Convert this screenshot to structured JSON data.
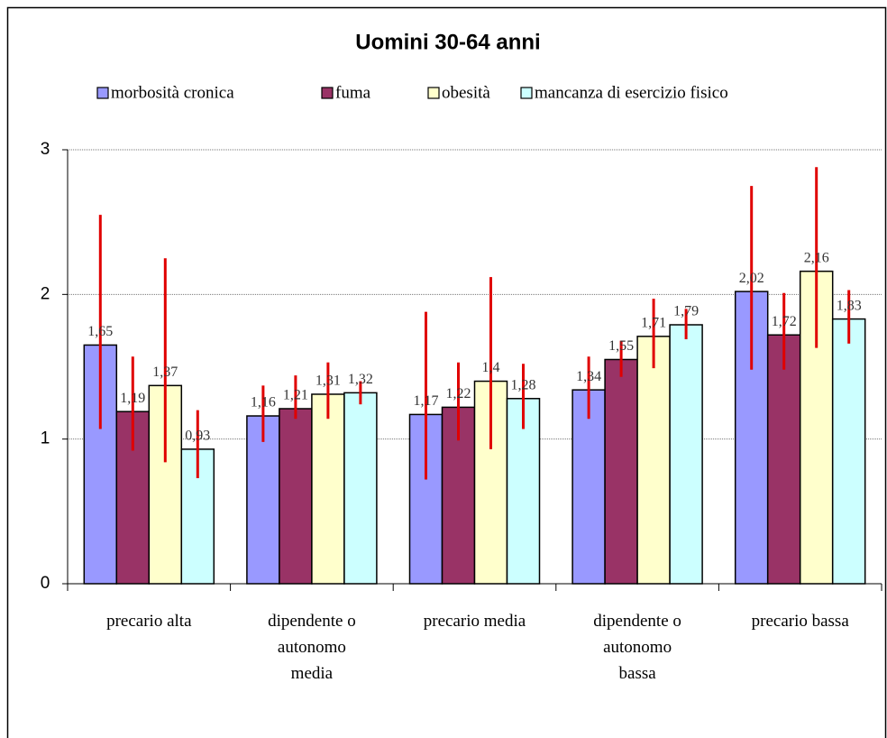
{
  "chart_data": {
    "type": "bar",
    "title": "Uomini 30-64 anni",
    "categories": [
      "precario alta",
      "dipendente o\nautonomo\nmedia",
      "precario media",
      "dipendente o\nautonomo\nbassa",
      "precario bassa"
    ],
    "series": [
      {
        "name": "morbosità cronica",
        "color": "#9999ff",
        "values": [
          1.65,
          1.16,
          1.17,
          1.34,
          2.02
        ],
        "value_labels": [
          "1,65",
          "1,16",
          "1,17",
          "1,34",
          "2,02"
        ],
        "ci_low": [
          1.07,
          0.98,
          0.72,
          1.14,
          1.48
        ],
        "ci_high": [
          2.55,
          1.37,
          1.88,
          1.57,
          2.75
        ]
      },
      {
        "name": "fuma",
        "color": "#993366",
        "values": [
          1.19,
          1.21,
          1.22,
          1.55,
          1.72
        ],
        "value_labels": [
          "1,19",
          "1,21",
          "1,22",
          "1,55",
          "1,72"
        ],
        "ci_low": [
          0.92,
          1.14,
          0.99,
          1.43,
          1.48
        ],
        "ci_high": [
          1.57,
          1.44,
          1.53,
          1.68,
          2.01
        ]
      },
      {
        "name": "obesità",
        "color": "#ffffcc",
        "values": [
          1.37,
          1.31,
          1.4,
          1.71,
          2.16
        ],
        "value_labels": [
          "1,37",
          "1,31",
          "1,4",
          "1,71",
          "2,16"
        ],
        "ci_low": [
          0.84,
          1.14,
          0.93,
          1.49,
          1.63
        ],
        "ci_high": [
          2.25,
          1.53,
          2.12,
          1.97,
          2.88
        ]
      },
      {
        "name": "mancanza di esercizio fisico",
        "color": "#ccffff",
        "values": [
          0.93,
          1.32,
          1.28,
          1.79,
          1.83
        ],
        "value_labels": [
          "0,93",
          "1,32",
          "1,28",
          "1,79",
          "1,83"
        ],
        "ci_low": [
          0.73,
          1.24,
          1.07,
          1.69,
          1.66
        ],
        "ci_high": [
          1.2,
          1.4,
          1.52,
          1.9,
          2.03
        ]
      }
    ],
    "error_color": "#e00000",
    "ylim": [
      0,
      3
    ],
    "yticks": [
      0,
      1,
      2,
      3
    ],
    "grid": true,
    "legend": "top"
  }
}
